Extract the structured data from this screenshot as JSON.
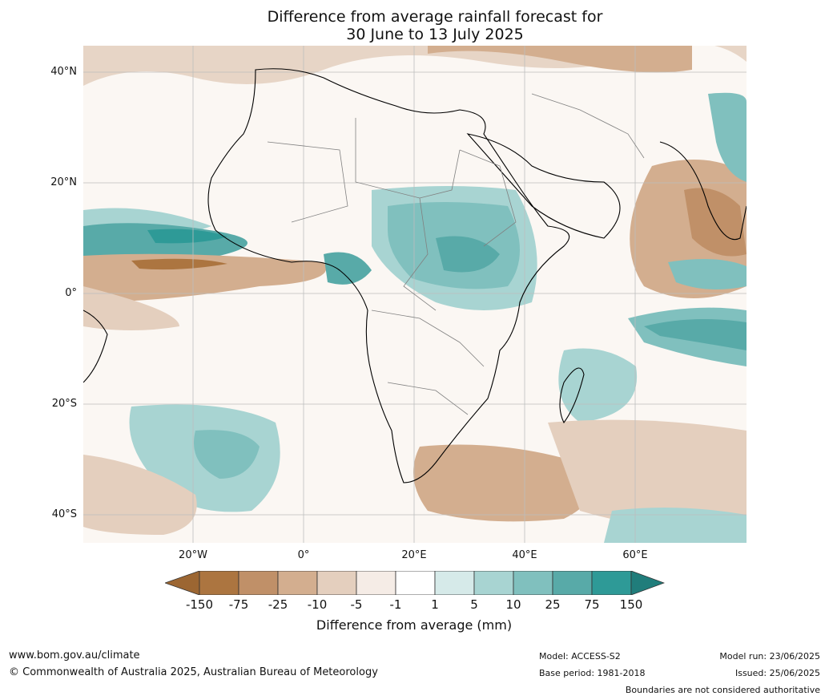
{
  "title": {
    "line1": "Difference from average rainfall forecast for",
    "line2": "30 June to 13 July 2025"
  },
  "map": {
    "lat_labels": [
      "40°N",
      "20°N",
      "0°",
      "20°S",
      "40°S"
    ],
    "lon_labels": [
      "20°W",
      "0°",
      "20°E",
      "40°E",
      "60°E"
    ],
    "lat_range": [
      -45,
      45
    ],
    "lon_range": [
      -40,
      80
    ]
  },
  "colorbar": {
    "ticks": [
      "-150",
      "-75",
      "-25",
      "-10",
      "-5",
      "-1",
      "1",
      "5",
      "10",
      "25",
      "75",
      "150"
    ],
    "colors": [
      "#9c6632",
      "#ac7540",
      "#c09068",
      "#d3ae8f",
      "#e4cfbe",
      "#f5ece6",
      "#ffffff",
      "#d6eae9",
      "#a8d4d2",
      "#80c0be",
      "#58aaa8",
      "#2e9a97",
      "#207d7b"
    ],
    "label": "Difference from average (mm)"
  },
  "footer": {
    "website": "www.bom.gov.au/climate",
    "copyright": "© Commonwealth of Australia 2025, Australian Bureau of Meteorology",
    "model": "Model: ACCESS-S2",
    "base_period": "Base period: 1981-2018",
    "model_run": "Model run: 23/06/2025",
    "issued": "Issued: 25/06/2025",
    "boundaries_note": "Boundaries are not considered authoritative"
  }
}
